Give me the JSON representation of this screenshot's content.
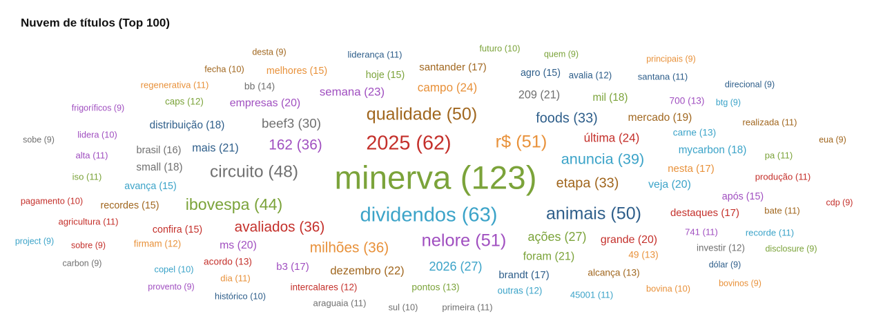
{
  "chart_data": {
    "type": "wordcloud",
    "title": "Nuvem de títulos (Top 100)",
    "words": [
      {
        "label": "desta (9)",
        "count": 9,
        "color": "#a0661e"
      },
      {
        "label": "liderança (11)",
        "count": 11,
        "color": "#2e5e8a"
      },
      {
        "label": "futuro (10)",
        "count": 10,
        "color": "#7ba33a"
      },
      {
        "label": "quem (9)",
        "count": 9,
        "color": "#7ba33a"
      },
      {
        "label": "principais (9)",
        "count": 9,
        "color": "#e8913a"
      },
      {
        "label": "fecha (10)",
        "count": 10,
        "color": "#a0661e"
      },
      {
        "label": "melhores (15)",
        "count": 15,
        "color": "#e8913a"
      },
      {
        "label": "hoje (15)",
        "count": 15,
        "color": "#7ba33a"
      },
      {
        "label": "santander (17)",
        "count": 17,
        "color": "#a0661e"
      },
      {
        "label": "agro (15)",
        "count": 15,
        "color": "#2e5e8a"
      },
      {
        "label": "avalia (12)",
        "count": 12,
        "color": "#2e5e8a"
      },
      {
        "label": "santana (11)",
        "count": 11,
        "color": "#2e5e8a"
      },
      {
        "label": "regenerativa (11)",
        "count": 11,
        "color": "#e8913a"
      },
      {
        "label": "bb (14)",
        "count": 14,
        "color": "#707070"
      },
      {
        "label": "semana (23)",
        "count": 23,
        "color": "#a04fc0"
      },
      {
        "label": "campo (24)",
        "count": 24,
        "color": "#e8913a"
      },
      {
        "label": "209 (21)",
        "count": 21,
        "color": "#707070"
      },
      {
        "label": "mil (18)",
        "count": 18,
        "color": "#7ba33a"
      },
      {
        "label": "direcional (9)",
        "count": 9,
        "color": "#2e5e8a"
      },
      {
        "label": "frigoríficos (9)",
        "count": 9,
        "color": "#a04fc0"
      },
      {
        "label": "caps (12)",
        "count": 12,
        "color": "#7ba33a"
      },
      {
        "label": "empresas (20)",
        "count": 20,
        "color": "#a04fc0"
      },
      {
        "label": "700 (13)",
        "count": 13,
        "color": "#a04fc0"
      },
      {
        "label": "btg (9)",
        "count": 9,
        "color": "#3ba3c8"
      },
      {
        "label": "qualidade (50)",
        "count": 50,
        "color": "#a0661e"
      },
      {
        "label": "foods (33)",
        "count": 33,
        "color": "#2e5e8a"
      },
      {
        "label": "mercado (19)",
        "count": 19,
        "color": "#a0661e"
      },
      {
        "label": "distribuição (18)",
        "count": 18,
        "color": "#2e5e8a"
      },
      {
        "label": "beef3 (30)",
        "count": 30,
        "color": "#707070"
      },
      {
        "label": "realizada (11)",
        "count": 11,
        "color": "#a0661e"
      },
      {
        "label": "lidera (10)",
        "count": 10,
        "color": "#a04fc0"
      },
      {
        "label": "carne (13)",
        "count": 13,
        "color": "#3ba3c8"
      },
      {
        "label": "sobe (9)",
        "count": 9,
        "color": "#707070"
      },
      {
        "label": "2025 (62)",
        "count": 62,
        "color": "#c4302b"
      },
      {
        "label": "r$ (51)",
        "count": 51,
        "color": "#e8913a"
      },
      {
        "label": "última (24)",
        "count": 24,
        "color": "#c4302b"
      },
      {
        "label": "eua (9)",
        "count": 9,
        "color": "#a0661e"
      },
      {
        "label": "alta (11)",
        "count": 11,
        "color": "#a04fc0"
      },
      {
        "label": "brasil (16)",
        "count": 16,
        "color": "#707070"
      },
      {
        "label": "mais (21)",
        "count": 21,
        "color": "#2e5e8a"
      },
      {
        "label": "162 (36)",
        "count": 36,
        "color": "#a04fc0"
      },
      {
        "label": "mycarbon (18)",
        "count": 18,
        "color": "#3ba3c8"
      },
      {
        "label": "pa (11)",
        "count": 11,
        "color": "#7ba33a"
      },
      {
        "label": "anuncia (39)",
        "count": 39,
        "color": "#3ba3c8"
      },
      {
        "label": "iso (11)",
        "count": 11,
        "color": "#7ba33a"
      },
      {
        "label": "small (18)",
        "count": 18,
        "color": "#707070"
      },
      {
        "label": "circuito (48)",
        "count": 48,
        "color": "#707070"
      },
      {
        "label": "nesta (17)",
        "count": 17,
        "color": "#e8913a"
      },
      {
        "label": "minerva (123)",
        "count": 123,
        "color": "#7ba33a"
      },
      {
        "label": "produção (11)",
        "count": 11,
        "color": "#c4302b"
      },
      {
        "label": "avança (15)",
        "count": 15,
        "color": "#3ba3c8"
      },
      {
        "label": "etapa (33)",
        "count": 33,
        "color": "#a0661e"
      },
      {
        "label": "veja (20)",
        "count": 20,
        "color": "#3ba3c8"
      },
      {
        "label": "após (15)",
        "count": 15,
        "color": "#a04fc0"
      },
      {
        "label": "pagamento (10)",
        "count": 10,
        "color": "#c4302b"
      },
      {
        "label": "recordes (15)",
        "count": 15,
        "color": "#a0661e"
      },
      {
        "label": "ibovespa (44)",
        "count": 44,
        "color": "#7ba33a"
      },
      {
        "label": "cdp (9)",
        "count": 9,
        "color": "#c4302b"
      },
      {
        "label": "dividendos (63)",
        "count": 63,
        "color": "#3ba3c8"
      },
      {
        "label": "animais (50)",
        "count": 50,
        "color": "#2e5e8a"
      },
      {
        "label": "destaques (17)",
        "count": 17,
        "color": "#c4302b"
      },
      {
        "label": "bate (11)",
        "count": 11,
        "color": "#a0661e"
      },
      {
        "label": "agricultura (11)",
        "count": 11,
        "color": "#c4302b"
      },
      {
        "label": "confira (15)",
        "count": 15,
        "color": "#c4302b"
      },
      {
        "label": "avaliados (36)",
        "count": 36,
        "color": "#c4302b"
      },
      {
        "label": "741 (11)",
        "count": 11,
        "color": "#a04fc0"
      },
      {
        "label": "recorde (11)",
        "count": 11,
        "color": "#3ba3c8"
      },
      {
        "label": "project (9)",
        "count": 9,
        "color": "#3ba3c8"
      },
      {
        "label": "sobre (9)",
        "count": 9,
        "color": "#c4302b"
      },
      {
        "label": "firmam (12)",
        "count": 12,
        "color": "#e8913a"
      },
      {
        "label": "ms (20)",
        "count": 20,
        "color": "#a04fc0"
      },
      {
        "label": "milhões (36)",
        "count": 36,
        "color": "#e8913a"
      },
      {
        "label": "nelore (51)",
        "count": 51,
        "color": "#a04fc0"
      },
      {
        "label": "ações (27)",
        "count": 27,
        "color": "#7ba33a"
      },
      {
        "label": "grande (20)",
        "count": 20,
        "color": "#c4302b"
      },
      {
        "label": "investir (12)",
        "count": 12,
        "color": "#707070"
      },
      {
        "label": "disclosure (9)",
        "count": 9,
        "color": "#7ba33a"
      },
      {
        "label": "carbon (9)",
        "count": 9,
        "color": "#707070"
      },
      {
        "label": "acordo (13)",
        "count": 13,
        "color": "#c4302b"
      },
      {
        "label": "foram (21)",
        "count": 21,
        "color": "#7ba33a"
      },
      {
        "label": "49 (13)",
        "count": 13,
        "color": "#e8913a"
      },
      {
        "label": "b3 (17)",
        "count": 17,
        "color": "#a04fc0"
      },
      {
        "label": "dezembro (22)",
        "count": 22,
        "color": "#a0661e"
      },
      {
        "label": "2026 (27)",
        "count": 27,
        "color": "#3ba3c8"
      },
      {
        "label": "dólar (9)",
        "count": 9,
        "color": "#2e5e8a"
      },
      {
        "label": "copel (10)",
        "count": 10,
        "color": "#3ba3c8"
      },
      {
        "label": "dia (11)",
        "count": 11,
        "color": "#e8913a"
      },
      {
        "label": "brandt (17)",
        "count": 17,
        "color": "#2e5e8a"
      },
      {
        "label": "alcança (13)",
        "count": 13,
        "color": "#a0661e"
      },
      {
        "label": "bovina (10)",
        "count": 10,
        "color": "#e8913a"
      },
      {
        "label": "bovinos (9)",
        "count": 9,
        "color": "#e8913a"
      },
      {
        "label": "provento (9)",
        "count": 9,
        "color": "#a04fc0"
      },
      {
        "label": "intercalares (12)",
        "count": 12,
        "color": "#c4302b"
      },
      {
        "label": "pontos (13)",
        "count": 13,
        "color": "#7ba33a"
      },
      {
        "label": "outras (12)",
        "count": 12,
        "color": "#3ba3c8"
      },
      {
        "label": "45001 (11)",
        "count": 11,
        "color": "#3ba3c8"
      },
      {
        "label": "histórico (10)",
        "count": 10,
        "color": "#2e5e8a"
      },
      {
        "label": "araguaia (11)",
        "count": 11,
        "color": "#707070"
      },
      {
        "label": "sul (10)",
        "count": 10,
        "color": "#707070"
      },
      {
        "label": "primeira (11)",
        "count": 11,
        "color": "#707070"
      }
    ]
  }
}
